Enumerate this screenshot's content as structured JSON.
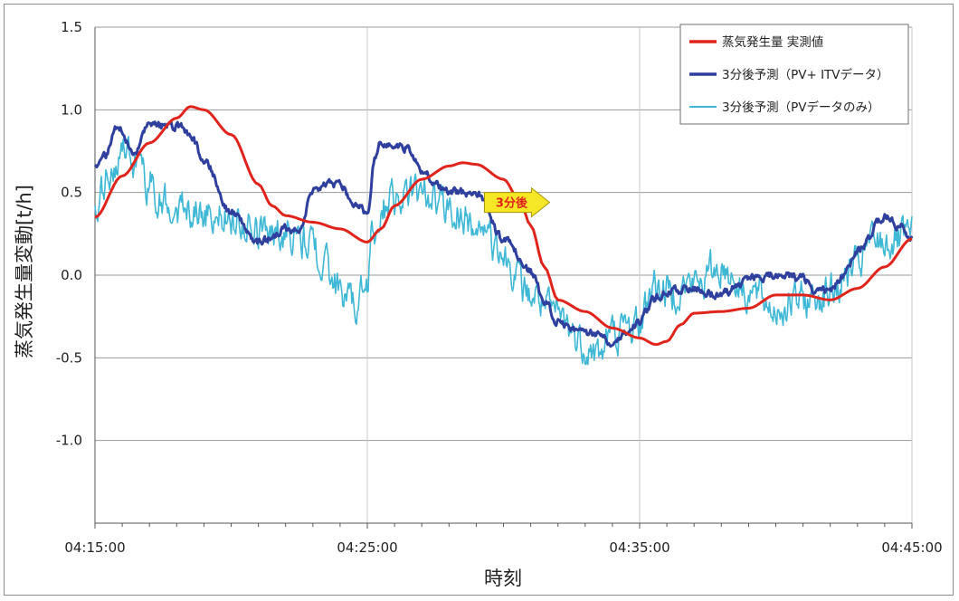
{
  "chart_data": {
    "type": "line",
    "xlabel": "時刻",
    "ylabel": "蒸気発生量変動[t/h]",
    "ylim": [
      -1.5,
      1.5
    ],
    "xlim_minutes": [
      0,
      30
    ],
    "y_ticks": [
      {
        "value": 1.5,
        "label": "1.5"
      },
      {
        "value": 1.0,
        "label": "1.0"
      },
      {
        "value": 0.5,
        "label": "0.5"
      },
      {
        "value": 0.0,
        "label": "0.0"
      },
      {
        "value": -0.5,
        "label": "-0.5"
      },
      {
        "value": -1.0,
        "label": "-1.0"
      }
    ],
    "x_ticks": [
      {
        "minute": 0,
        "label": "04:15:00"
      },
      {
        "minute": 10,
        "label": "04:25:00"
      },
      {
        "minute": 20,
        "label": "04:35:00"
      },
      {
        "minute": 30,
        "label": "04:45:00"
      }
    ],
    "grid": true,
    "legend_position": "top-right",
    "annotation": {
      "text": "3分後",
      "at_minute": 14.3,
      "at_value": 0.44
    },
    "series": [
      {
        "name": "蒸気発生量 実測値",
        "color": "#e0241c",
        "width": 3,
        "noise": 0,
        "points": [
          [
            0,
            0.35
          ],
          [
            1,
            0.6
          ],
          [
            2,
            0.8
          ],
          [
            3,
            0.95
          ],
          [
            3.5,
            1.02
          ],
          [
            4,
            1.0
          ],
          [
            5,
            0.85
          ],
          [
            6,
            0.55
          ],
          [
            6.5,
            0.42
          ],
          [
            7,
            0.36
          ],
          [
            8,
            0.32
          ],
          [
            9,
            0.28
          ],
          [
            10,
            0.2
          ],
          [
            10.5,
            0.28
          ],
          [
            11,
            0.42
          ],
          [
            12,
            0.58
          ],
          [
            13,
            0.66
          ],
          [
            13.5,
            0.68
          ],
          [
            14,
            0.67
          ],
          [
            15,
            0.58
          ],
          [
            15.6,
            0.45
          ],
          [
            16,
            0.3
          ],
          [
            16.5,
            0.05
          ],
          [
            17,
            -0.15
          ],
          [
            18,
            -0.22
          ],
          [
            19,
            -0.32
          ],
          [
            20,
            -0.38
          ],
          [
            20.6,
            -0.42
          ],
          [
            21,
            -0.4
          ],
          [
            21.5,
            -0.3
          ],
          [
            22,
            -0.23
          ],
          [
            23,
            -0.22
          ],
          [
            24,
            -0.2
          ],
          [
            25,
            -0.12
          ],
          [
            26,
            -0.12
          ],
          [
            27,
            -0.15
          ],
          [
            28,
            -0.08
          ],
          [
            29,
            0.05
          ],
          [
            30,
            0.22
          ]
        ]
      },
      {
        "name": "3分後予測（PV+ ITVデータ）",
        "color": "#2e3f9e",
        "width": 3,
        "noise": 0.02,
        "points": [
          [
            0,
            0.67
          ],
          [
            0.4,
            0.72
          ],
          [
            0.8,
            0.9
          ],
          [
            1,
            0.88
          ],
          [
            1.4,
            0.72
          ],
          [
            2,
            0.9
          ],
          [
            3,
            0.9
          ],
          [
            3.5,
            0.85
          ],
          [
            4,
            0.7
          ],
          [
            5,
            0.38
          ],
          [
            6,
            0.2
          ],
          [
            6.5,
            0.22
          ],
          [
            7,
            0.28
          ],
          [
            7.5,
            0.28
          ],
          [
            8,
            0.5
          ],
          [
            8.6,
            0.55
          ],
          [
            9,
            0.55
          ],
          [
            9.5,
            0.43
          ],
          [
            10,
            0.38
          ],
          [
            10.3,
            0.72
          ],
          [
            10.5,
            0.8
          ],
          [
            11,
            0.78
          ],
          [
            11.5,
            0.77
          ],
          [
            12,
            0.62
          ],
          [
            13,
            0.5
          ],
          [
            14,
            0.5
          ],
          [
            15,
            0.22
          ],
          [
            16,
            0.02
          ],
          [
            16.5,
            -0.15
          ],
          [
            17,
            -0.28
          ],
          [
            18,
            -0.35
          ],
          [
            18.5,
            -0.35
          ],
          [
            19,
            -0.4
          ],
          [
            19.5,
            -0.35
          ],
          [
            20,
            -0.28
          ],
          [
            20.5,
            -0.15
          ],
          [
            21,
            -0.1
          ],
          [
            22,
            -0.08
          ],
          [
            23,
            -0.12
          ],
          [
            24,
            -0.02
          ],
          [
            25,
            0.0
          ],
          [
            26,
            -0.02
          ],
          [
            26.5,
            -0.1
          ],
          [
            27,
            -0.08
          ],
          [
            27.5,
            0.0
          ],
          [
            28,
            0.15
          ],
          [
            29,
            0.35
          ],
          [
            29.5,
            0.3
          ],
          [
            30,
            0.22
          ]
        ]
      },
      {
        "name": "3分後予測（PVデータのみ）",
        "color": "#3fb8d6",
        "width": 1.6,
        "noise": 0.09,
        "points": [
          [
            0,
            0.33
          ],
          [
            0.5,
            0.6
          ],
          [
            1,
            0.75
          ],
          [
            1.5,
            0.65
          ],
          [
            2,
            0.55
          ],
          [
            2.5,
            0.45
          ],
          [
            3,
            0.4
          ],
          [
            4,
            0.38
          ],
          [
            5,
            0.35
          ],
          [
            6,
            0.25
          ],
          [
            7,
            0.27
          ],
          [
            8,
            0.18
          ],
          [
            9,
            -0.08
          ],
          [
            9.5,
            -0.18
          ],
          [
            10,
            -0.08
          ],
          [
            10.2,
            0.3
          ],
          [
            11,
            0.48
          ],
          [
            12,
            0.5
          ],
          [
            13,
            0.4
          ],
          [
            14,
            0.3
          ],
          [
            15,
            0.1
          ],
          [
            16,
            -0.12
          ],
          [
            17,
            -0.25
          ],
          [
            18,
            -0.42
          ],
          [
            18.5,
            -0.48
          ],
          [
            19,
            -0.35
          ],
          [
            20,
            -0.3
          ],
          [
            20.5,
            -0.05
          ],
          [
            21,
            -0.1
          ],
          [
            22,
            -0.05
          ],
          [
            23,
            0.05
          ],
          [
            24,
            -0.1
          ],
          [
            25,
            -0.2
          ],
          [
            26,
            -0.15
          ],
          [
            27,
            -0.1
          ],
          [
            28,
            0.05
          ],
          [
            28.5,
            0.2
          ],
          [
            29,
            0.2
          ],
          [
            30,
            0.22
          ]
        ]
      }
    ]
  }
}
